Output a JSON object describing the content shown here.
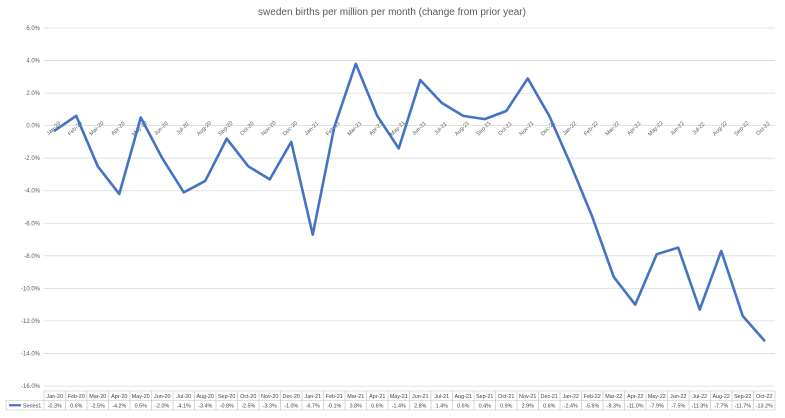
{
  "chart_data": {
    "type": "line",
    "title": "sweden births per million per month (change from prior year)",
    "xlabel": "",
    "ylabel": "",
    "ylim": [
      -16,
      6
    ],
    "y_step": 2,
    "y_tick_format": "percent_1dp",
    "grid": true,
    "legend": "data-table-bottom",
    "categories": [
      "Jan-20",
      "Feb-20",
      "Mar-20",
      "Apr-20",
      "May-20",
      "Jun-20",
      "Jul-20",
      "Aug-20",
      "Sep-20",
      "Oct-20",
      "Nov-20",
      "Dec-20",
      "Jan-21",
      "Feb-21",
      "Mar-21",
      "Apr-21",
      "May-21",
      "Jun-21",
      "Jul-21",
      "Aug-21",
      "Sep-21",
      "Oct-21",
      "Nov-21",
      "Dec-21",
      "Jan-22",
      "Feb-22",
      "Mar-22",
      "Apr-22",
      "May-22",
      "Jun-22",
      "Jul-22",
      "Aug-22",
      "Sep-22",
      "Oct-22"
    ],
    "series": [
      {
        "name": "Series1",
        "color": "#4472C4",
        "values": [
          -0.3,
          0.6,
          -2.5,
          -4.2,
          0.5,
          -2.0,
          -4.1,
          -3.4,
          -0.8,
          -2.5,
          -3.3,
          -1.0,
          -6.7,
          -0.1,
          3.8,
          0.6,
          -1.4,
          2.8,
          1.4,
          0.6,
          0.4,
          0.9,
          2.9,
          0.6,
          -2.4,
          -5.6,
          -9.3,
          -11.0,
          -7.9,
          -7.5,
          -11.3,
          -7.7,
          -11.7,
          -13.2
        ],
        "table_labels": [
          "-0.3%",
          "0.6%",
          "-2.5%",
          "-4.2%",
          "0.5%",
          "-2.0%",
          "-4.1%",
          "-3.4%",
          "-0.8%",
          "-2.5%",
          "-3.3%",
          "-1.0%",
          "-6.7%",
          "-0.1%",
          "3.8%",
          "0.6%",
          "-1.4%",
          "2.8%",
          "1.4%",
          "0.6%",
          "0.4%",
          "0.9%",
          "2.9%",
          "0.6%",
          "-2.4%",
          "-5.6%",
          "-9.3%",
          "-11.0%",
          "-7.9%",
          "-7.5%",
          "-11.3%",
          "-7.7%",
          "-11.7%",
          "-13.2%"
        ]
      }
    ]
  },
  "colors": {
    "gridline": "#d9d9d9",
    "text": "#595959",
    "border": "#bfbfbf"
  }
}
